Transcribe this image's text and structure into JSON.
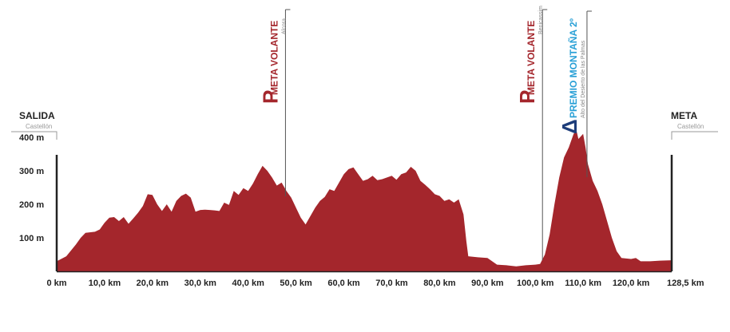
{
  "colors": {
    "fill": "#a4262c",
    "sprint": "#a4262c",
    "climb_title": "#29a0d6",
    "climb_glyph": "#1d3d7a",
    "pole": "#555555",
    "axis": "#222222"
  },
  "chart_data": {
    "type": "area",
    "x_unit": "km",
    "y_unit": "m",
    "xlim": [
      0,
      128.5
    ],
    "ylim": [
      0,
      450
    ],
    "grid": false,
    "x_ticks": [
      {
        "v": 0,
        "label": "0 km"
      },
      {
        "v": 10,
        "label": "10,0 km"
      },
      {
        "v": 20,
        "label": "20,0 km"
      },
      {
        "v": 30,
        "label": "30,0 km"
      },
      {
        "v": 40,
        "label": "40,0 km"
      },
      {
        "v": 50,
        "label": "50,0 km"
      },
      {
        "v": 60,
        "label": "60,0 km"
      },
      {
        "v": 70,
        "label": "70,0 km"
      },
      {
        "v": 80,
        "label": "80,0 km"
      },
      {
        "v": 90,
        "label": "90,0 km"
      },
      {
        "v": 100,
        "label": "100,0 km"
      },
      {
        "v": 110,
        "label": "110,0 km"
      },
      {
        "v": 120,
        "label": "120,0 km"
      },
      {
        "v": 128.5,
        "label": "128,5 km"
      }
    ],
    "y_ticks": [
      {
        "v": 100,
        "label": "100 m"
      },
      {
        "v": 200,
        "label": "200 m"
      },
      {
        "v": 300,
        "label": "300 m"
      },
      {
        "v": 400,
        "label": "400 m"
      }
    ],
    "profile": [
      [
        0,
        30
      ],
      [
        2,
        45
      ],
      [
        4,
        80
      ],
      [
        5,
        100
      ],
      [
        6,
        115
      ],
      [
        8,
        118
      ],
      [
        9,
        125
      ],
      [
        10,
        145
      ],
      [
        11,
        160
      ],
      [
        12,
        162
      ],
      [
        13,
        150
      ],
      [
        14,
        162
      ],
      [
        15,
        142
      ],
      [
        16,
        158
      ],
      [
        17,
        175
      ],
      [
        18,
        195
      ],
      [
        19,
        230
      ],
      [
        20,
        228
      ],
      [
        21,
        200
      ],
      [
        22,
        180
      ],
      [
        23,
        200
      ],
      [
        24,
        178
      ],
      [
        25,
        210
      ],
      [
        26,
        225
      ],
      [
        27,
        232
      ],
      [
        28,
        220
      ],
      [
        29,
        178
      ],
      [
        30,
        183
      ],
      [
        31,
        184
      ],
      [
        32,
        183
      ],
      [
        33,
        182
      ],
      [
        34,
        180
      ],
      [
        35,
        205
      ],
      [
        36,
        198
      ],
      [
        37,
        240
      ],
      [
        38,
        228
      ],
      [
        39,
        248
      ],
      [
        40,
        240
      ],
      [
        41,
        262
      ],
      [
        42,
        290
      ],
      [
        43,
        315
      ],
      [
        44,
        300
      ],
      [
        45,
        280
      ],
      [
        46,
        256
      ],
      [
        47,
        265
      ],
      [
        48,
        240
      ],
      [
        49,
        220
      ],
      [
        50,
        190
      ],
      [
        51,
        160
      ],
      [
        52,
        140
      ],
      [
        53,
        165
      ],
      [
        54,
        190
      ],
      [
        55,
        210
      ],
      [
        56,
        222
      ],
      [
        57,
        245
      ],
      [
        58,
        240
      ],
      [
        59,
        265
      ],
      [
        60,
        290
      ],
      [
        61,
        305
      ],
      [
        62,
        310
      ],
      [
        63,
        290
      ],
      [
        64,
        270
      ],
      [
        65,
        275
      ],
      [
        66,
        285
      ],
      [
        67,
        272
      ],
      [
        68,
        275
      ],
      [
        69,
        280
      ],
      [
        70,
        285
      ],
      [
        71,
        273
      ],
      [
        72,
        290
      ],
      [
        73,
        295
      ],
      [
        74,
        312
      ],
      [
        75,
        300
      ],
      [
        76,
        270
      ],
      [
        77,
        258
      ],
      [
        78,
        245
      ],
      [
        79,
        230
      ],
      [
        80,
        225
      ],
      [
        81,
        210
      ],
      [
        82,
        215
      ],
      [
        83,
        205
      ],
      [
        84,
        215
      ],
      [
        85,
        170
      ],
      [
        85.6,
        90
      ],
      [
        86,
        45
      ],
      [
        88,
        42
      ],
      [
        90,
        40
      ],
      [
        92,
        20
      ],
      [
        94,
        18
      ],
      [
        96,
        15
      ],
      [
        98,
        18
      ],
      [
        100,
        20
      ],
      [
        101,
        22
      ],
      [
        102,
        50
      ],
      [
        103,
        110
      ],
      [
        104,
        200
      ],
      [
        105,
        280
      ],
      [
        106,
        340
      ],
      [
        107,
        370
      ],
      [
        108,
        410
      ],
      [
        108.6,
        420
      ],
      [
        109,
        395
      ],
      [
        110,
        410
      ],
      [
        110.5,
        370
      ],
      [
        111,
        320
      ],
      [
        112,
        270
      ],
      [
        113,
        240
      ],
      [
        114,
        200
      ],
      [
        115,
        150
      ],
      [
        116,
        100
      ],
      [
        117,
        60
      ],
      [
        118,
        40
      ],
      [
        120,
        37
      ],
      [
        121,
        40
      ],
      [
        122,
        30
      ],
      [
        124,
        30
      ],
      [
        126,
        32
      ],
      [
        128.5,
        33
      ]
    ],
    "annotations": [
      {
        "km": 0,
        "title": "SALIDA",
        "subtitle": "Castellón"
      },
      {
        "km": 128.5,
        "title": "META",
        "subtitle": "Castellón"
      },
      {
        "km": 47.8,
        "type": "sprint",
        "glyph": "P",
        "title": "META VOLANTE",
        "subtitle": "Alcora"
      },
      {
        "km": 101.5,
        "type": "sprint",
        "glyph": "P",
        "title": "META VOLANTE",
        "subtitle": "Benicassim"
      },
      {
        "km": 110.8,
        "type": "climb",
        "glyph": "Δ",
        "title": "PREMIO MONTAÑA 2º",
        "subtitle": "Alto del Desierto de las Palmas"
      }
    ]
  }
}
